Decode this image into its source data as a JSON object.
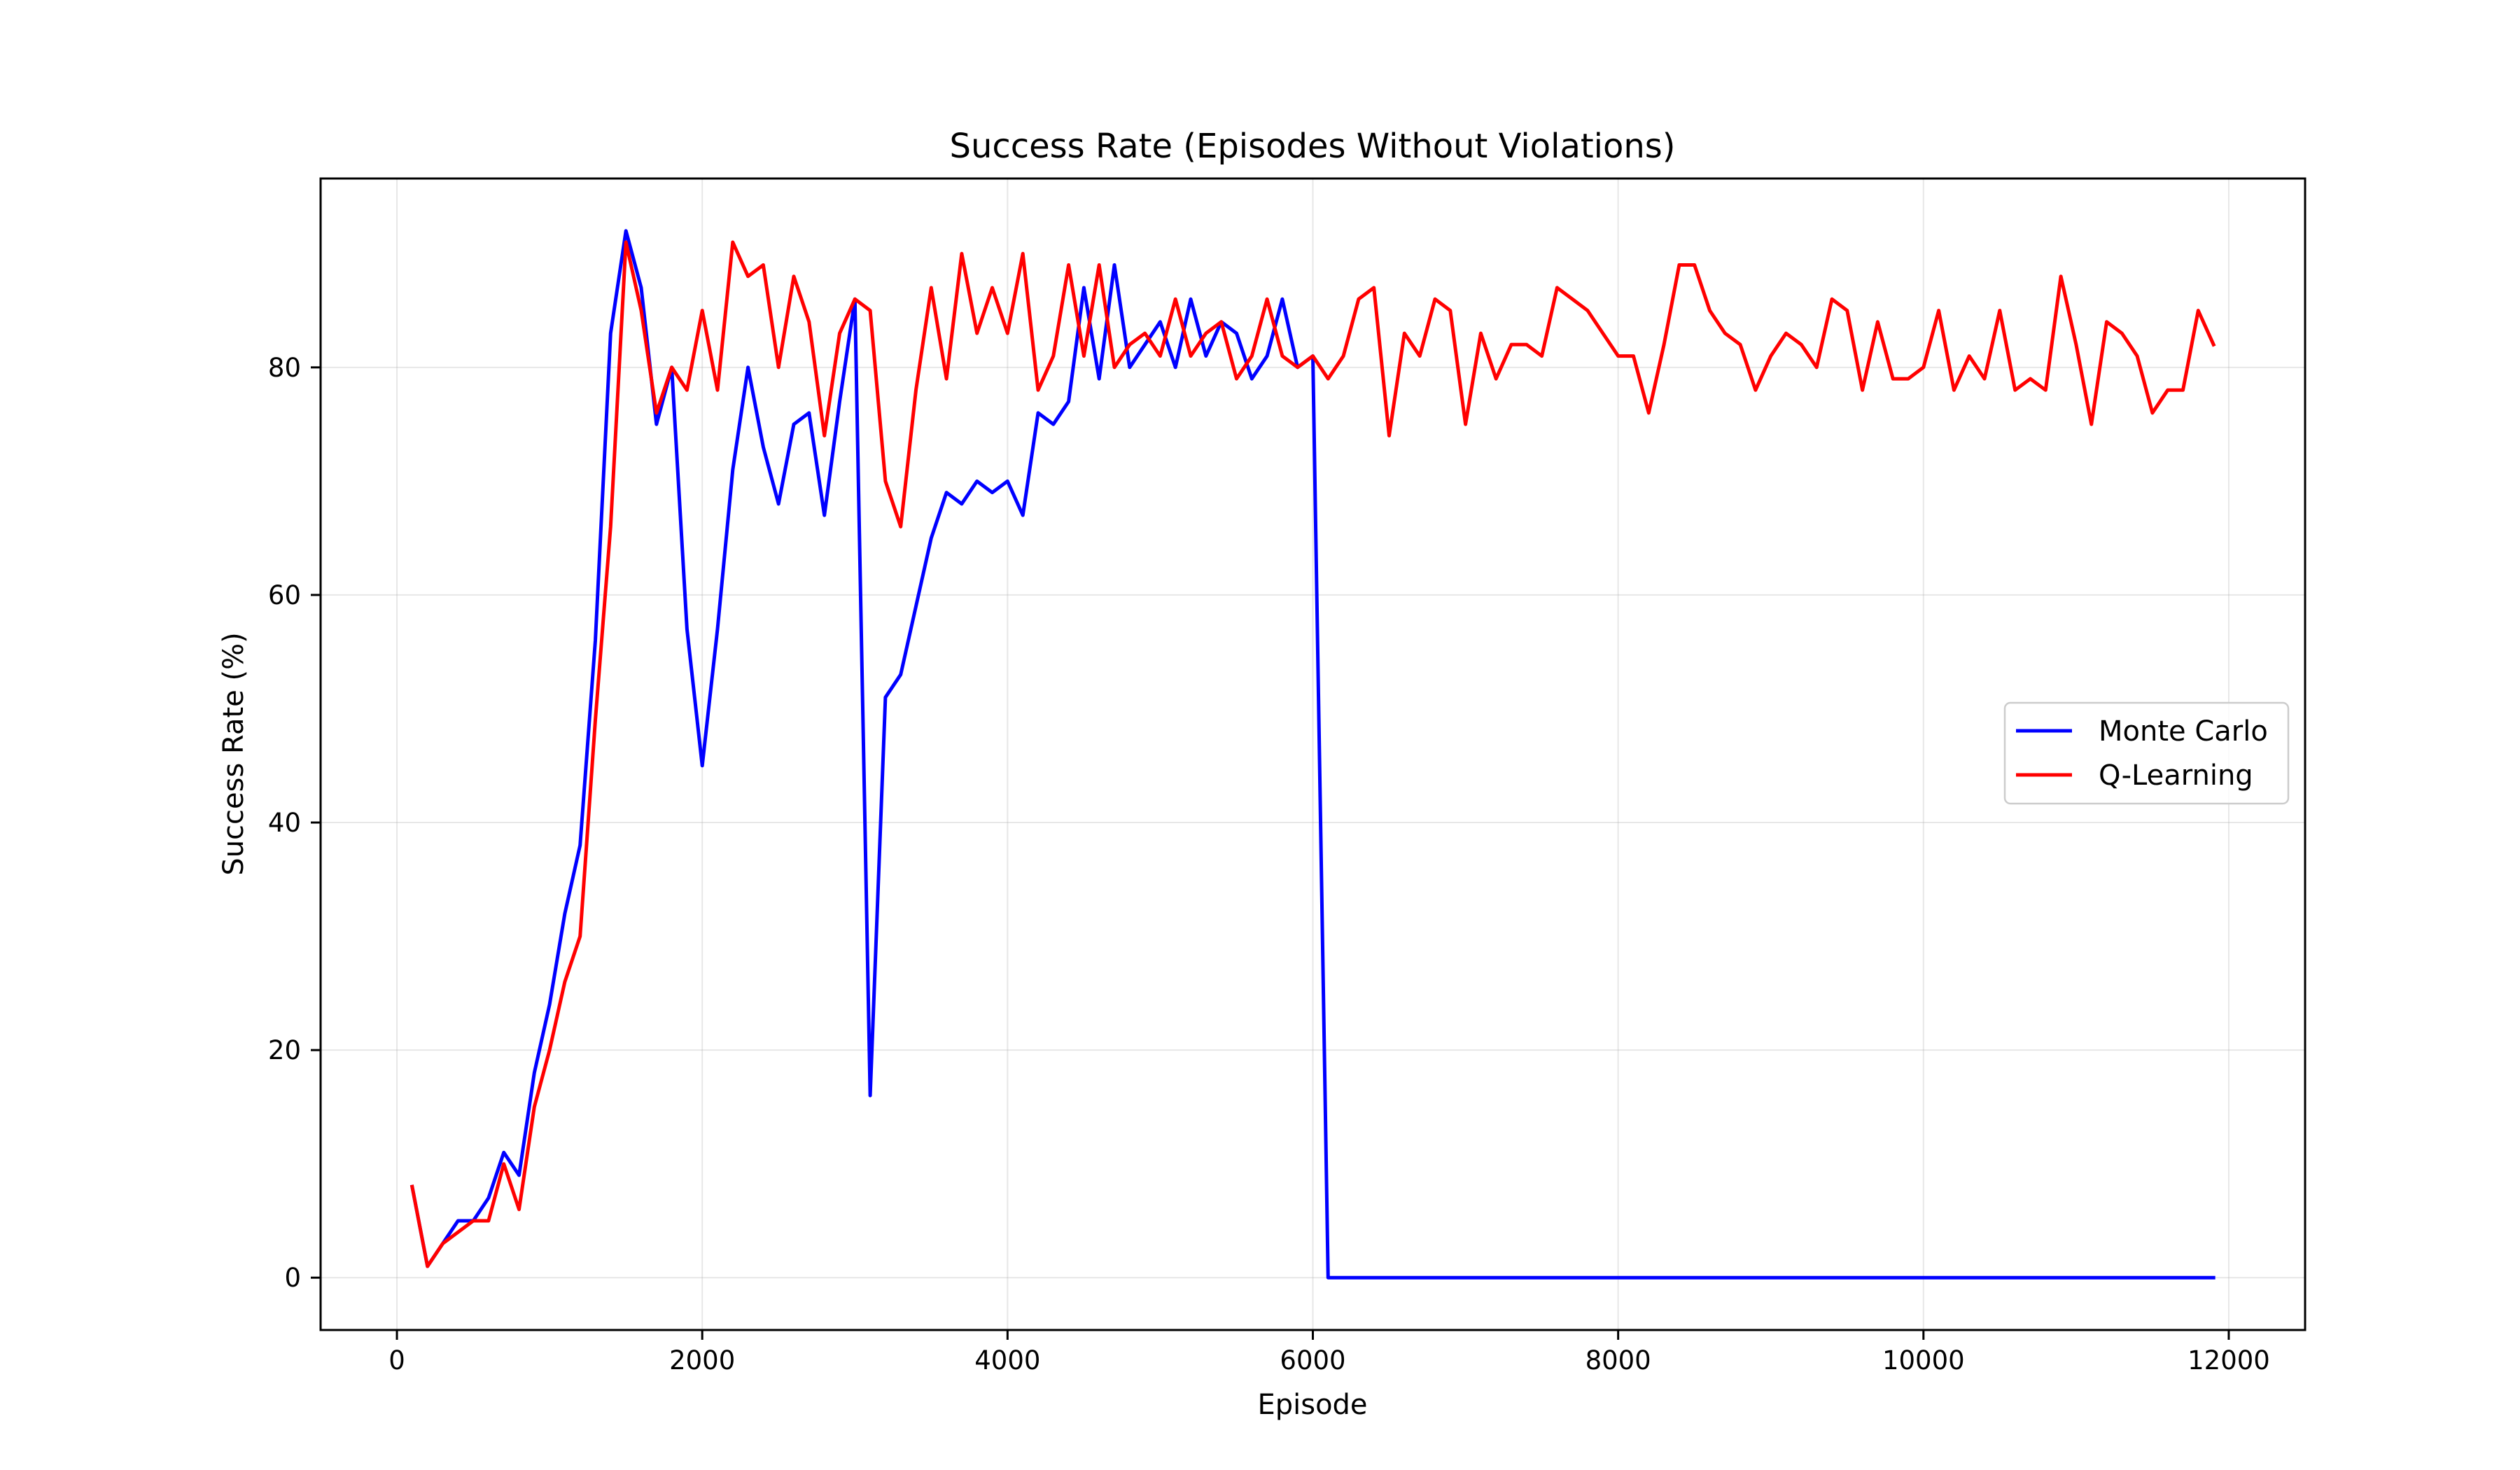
{
  "chart_data": {
    "type": "line",
    "title": "Success Rate (Episodes Without Violations)",
    "xlabel": "Episode",
    "ylabel": "Success Rate (%)",
    "xlim": [
      -500,
      12500
    ],
    "ylim": [
      -4.6,
      96.6
    ],
    "xticks": [
      0,
      2000,
      4000,
      6000,
      8000,
      10000,
      12000
    ],
    "yticks": [
      0,
      20,
      40,
      60,
      80
    ],
    "grid": true,
    "legend_position": "center-right",
    "series": [
      {
        "name": "Monte Carlo",
        "color": "#0000ff",
        "x": [
          100,
          200,
          300,
          400,
          500,
          600,
          700,
          800,
          900,
          1000,
          1100,
          1200,
          1300,
          1400,
          1500,
          1600,
          1700,
          1800,
          1900,
          2000,
          2100,
          2200,
          2300,
          2400,
          2500,
          2600,
          2700,
          2800,
          2900,
          3000,
          3100,
          3200,
          3300,
          3400,
          3500,
          3600,
          3700,
          3800,
          3900,
          4000,
          4100,
          4200,
          4300,
          4400,
          4500,
          4600,
          4700,
          4800,
          4900,
          5000,
          5100,
          5200,
          5300,
          5400,
          5500,
          5600,
          5700,
          5800,
          5900,
          6000,
          6100,
          11900
        ],
        "y": [
          8,
          1,
          3,
          5,
          5,
          7,
          11,
          9,
          18,
          24,
          32,
          38,
          56,
          83,
          92,
          87,
          75,
          80,
          57,
          45,
          57,
          71,
          80,
          73,
          68,
          75,
          76,
          67,
          77,
          86,
          16,
          51,
          53,
          59,
          65,
          69,
          68,
          70,
          69,
          70,
          67,
          76,
          75,
          77,
          87,
          79,
          89,
          80,
          82,
          84,
          80,
          86,
          81,
          84,
          83,
          79,
          81,
          86,
          80,
          81,
          0,
          0
        ]
      },
      {
        "name": "Q-Learning",
        "color": "#ff0000",
        "x": [
          100,
          200,
          300,
          400,
          500,
          600,
          700,
          800,
          900,
          1000,
          1100,
          1200,
          1300,
          1400,
          1500,
          1600,
          1700,
          1800,
          1900,
          2000,
          2100,
          2200,
          2300,
          2400,
          2500,
          2600,
          2700,
          2800,
          2900,
          3000,
          3100,
          3200,
          3300,
          3400,
          3500,
          3600,
          3700,
          3800,
          3900,
          4000,
          4100,
          4200,
          4300,
          4400,
          4500,
          4600,
          4700,
          4800,
          4900,
          5000,
          5100,
          5200,
          5300,
          5400,
          5500,
          5600,
          5700,
          5800,
          5900,
          6000,
          6100,
          6200,
          6300,
          6400,
          6500,
          6600,
          6700,
          6800,
          6900,
          7000,
          7100,
          7200,
          7300,
          7400,
          7500,
          7600,
          7700,
          7800,
          7900,
          8000,
          8100,
          8200,
          8300,
          8400,
          8500,
          8600,
          8700,
          8800,
          8900,
          9000,
          9100,
          9200,
          9300,
          9400,
          9500,
          9600,
          9700,
          9800,
          9900,
          10000,
          10100,
          10200,
          10300,
          10400,
          10500,
          10600,
          10700,
          10800,
          10900,
          11000,
          11100,
          11200,
          11300,
          11400,
          11500,
          11600,
          11700,
          11800,
          11900
        ],
        "y": [
          8,
          1,
          3,
          4,
          5,
          5,
          10,
          6,
          15,
          20,
          26,
          30,
          49,
          66,
          91,
          85,
          76,
          80,
          78,
          85,
          78,
          91,
          88,
          89,
          80,
          88,
          84,
          74,
          83,
          86,
          85,
          70,
          66,
          78,
          87,
          79,
          90,
          83,
          87,
          83,
          90,
          78,
          81,
          89,
          81,
          89,
          80,
          82,
          83,
          81,
          86,
          81,
          83,
          84,
          79,
          81,
          86,
          81,
          80,
          81,
          79,
          81,
          86,
          87,
          74,
          83,
          81,
          86,
          85,
          75,
          83,
          79,
          82,
          82,
          81,
          87,
          86,
          85,
          83,
          81,
          81,
          76,
          82,
          89,
          89,
          85,
          83,
          82,
          78,
          81,
          83,
          82,
          80,
          86,
          85,
          78,
          84,
          79,
          79,
          80,
          85,
          78,
          81,
          79,
          85,
          78,
          79,
          78,
          88,
          82,
          75,
          84,
          83,
          81,
          76,
          78,
          78,
          85,
          82
        ]
      }
    ]
  }
}
